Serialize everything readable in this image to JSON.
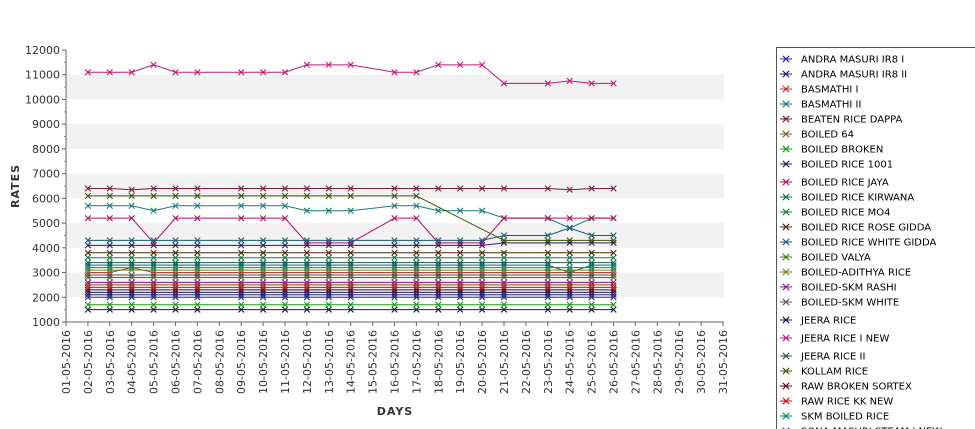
{
  "chart_data": {
    "type": "line",
    "title": "",
    "xlabel": "DAYS",
    "ylabel": "RATES",
    "ylim": [
      1000,
      12000
    ],
    "yticks": [
      1000,
      2000,
      3000,
      4000,
      5000,
      6000,
      7000,
      8000,
      9000,
      10000,
      11000,
      12000
    ],
    "x": [
      "01-05-2016",
      "02-05-2016",
      "03-05-2016",
      "04-05-2016",
      "05-05-2016",
      "06-05-2016",
      "07-05-2016",
      "08-05-2016",
      "09-05-2016",
      "10-05-2016",
      "11-05-2016",
      "12-05-2016",
      "13-05-2016",
      "14-05-2016",
      "15-05-2016",
      "16-05-2016",
      "17-05-2016",
      "18-05-2016",
      "19-05-2016",
      "20-05-2016",
      "21-05-2016",
      "22-05-2016",
      "23-05-2016",
      "24-05-2016",
      "25-05-2016",
      "26-05-2016",
      "27-05-2016",
      "28-05-2016",
      "29-05-2016",
      "30-05-2016",
      "31-05-2016"
    ],
    "grid": "alternating horizontal bands",
    "legend_position": "right",
    "series": [
      {
        "name": "ANDRA MASURI IR8 I",
        "color": "#2a2a9a",
        "values": [
          null,
          2000,
          2000,
          2000,
          2000,
          2000,
          2000,
          null,
          2000,
          2000,
          2000,
          2000,
          2000,
          2000,
          null,
          2000,
          2000,
          2000,
          2000,
          2000,
          2000,
          null,
          2000,
          2000,
          2000,
          2000,
          null,
          null,
          null,
          null,
          null
        ]
      },
      {
        "name": "ANDRA MASURI IR8 II",
        "color": "#1a1a6a",
        "values": [
          null,
          2200,
          2200,
          2200,
          2200,
          2200,
          2200,
          null,
          2200,
          2200,
          2200,
          2200,
          2200,
          2200,
          null,
          2200,
          2200,
          2200,
          2200,
          2200,
          2200,
          null,
          2200,
          2200,
          2200,
          2200,
          null,
          null,
          null,
          null,
          null
        ]
      },
      {
        "name": "BASMATHI I",
        "color": "#c0392b",
        "values": [
          null,
          3000,
          3000,
          3200,
          3000,
          3000,
          3000,
          null,
          3000,
          3000,
          3000,
          3000,
          3000,
          3000,
          null,
          3000,
          3000,
          3000,
          3000,
          3000,
          3000,
          null,
          3000,
          3000,
          3000,
          3000,
          null,
          null,
          null,
          null,
          null
        ]
      },
      {
        "name": "BASMATHI II",
        "color": "#1a7a7a",
        "values": [
          null,
          5700,
          5700,
          5700,
          5500,
          5700,
          5700,
          null,
          5700,
          5700,
          5700,
          5500,
          5500,
          5500,
          null,
          5700,
          5700,
          5500,
          5500,
          5500,
          5200,
          null,
          5200,
          4800,
          5200,
          5200,
          null,
          null,
          null,
          null,
          null
        ]
      },
      {
        "name": "BEATEN RICE DAPPA",
        "color": "#7a1a3a",
        "values": [
          null,
          6400,
          6400,
          6350,
          6400,
          6400,
          6400,
          null,
          6400,
          6400,
          6400,
          6400,
          6400,
          6400,
          null,
          6400,
          6400,
          6400,
          6400,
          6400,
          6400,
          null,
          6400,
          6350,
          6400,
          6400,
          null,
          null,
          null,
          null,
          null
        ]
      },
      {
        "name": "BOILED 64",
        "color": "#8a5a1a",
        "values": [
          null,
          2500,
          2500,
          2500,
          2500,
          2500,
          2500,
          null,
          2500,
          2500,
          2500,
          2500,
          2500,
          2500,
          null,
          2500,
          2500,
          2500,
          2500,
          2500,
          2500,
          null,
          2500,
          2500,
          2500,
          2500,
          null,
          null,
          null,
          null,
          null
        ]
      },
      {
        "name": "BOILED BROKEN",
        "color": "#1a9a1a",
        "values": [
          null,
          1700,
          1700,
          1700,
          1700,
          1700,
          1700,
          null,
          1700,
          1700,
          1700,
          1700,
          1700,
          1700,
          null,
          1700,
          1700,
          1700,
          1700,
          1700,
          1700,
          null,
          1700,
          1700,
          1700,
          1700,
          null,
          null,
          null,
          null,
          null
        ]
      },
      {
        "name": "BOILED RICE 1001",
        "color": "#3a1a5a",
        "values": [
          null,
          4100,
          4100,
          4100,
          4100,
          4100,
          4100,
          null,
          4100,
          4100,
          4100,
          4100,
          4100,
          4100,
          null,
          4100,
          4100,
          4100,
          4100,
          4100,
          4200,
          null,
          4200,
          4200,
          4200,
          4200,
          null,
          null,
          null,
          null,
          null
        ]
      },
      {
        "name": "BOILED RICE JAYA",
        "color": "#b0106a",
        "values": [
          null,
          5200,
          5200,
          5200,
          4200,
          5200,
          5200,
          null,
          5200,
          5200,
          5200,
          4200,
          4200,
          4200,
          null,
          5200,
          5200,
          4200,
          4200,
          4200,
          5200,
          null,
          5200,
          5200,
          5200,
          5200,
          null,
          null,
          null,
          null,
          null
        ]
      },
      {
        "name": "BOILED RICE KIRWANA",
        "color": "#0a6a5a",
        "values": [
          null,
          3300,
          3300,
          3300,
          3300,
          3300,
          3300,
          null,
          3300,
          3300,
          3300,
          3300,
          3300,
          3300,
          null,
          3300,
          3300,
          3300,
          3300,
          3300,
          3300,
          null,
          3300,
          3000,
          3300,
          3300,
          null,
          null,
          null,
          null,
          null
        ]
      },
      {
        "name": "BOILED RICE MO4",
        "color": "#1a7a3a",
        "values": [
          null,
          3600,
          3600,
          3600,
          3600,
          3600,
          3600,
          null,
          3600,
          3600,
          3600,
          3600,
          3600,
          3600,
          null,
          3600,
          3600,
          3600,
          3600,
          3600,
          3600,
          null,
          3600,
          3600,
          3600,
          3600,
          null,
          null,
          null,
          null,
          null
        ]
      },
      {
        "name": "BOILED RICE ROSE GIDDA",
        "color": "#4a2a0a",
        "values": [
          null,
          3800,
          3800,
          3800,
          3800,
          3800,
          3800,
          null,
          3800,
          3800,
          3800,
          3800,
          3800,
          3800,
          null,
          3800,
          3800,
          3800,
          3800,
          3800,
          3800,
          null,
          3800,
          3800,
          3800,
          3800,
          null,
          null,
          null,
          null,
          null
        ]
      },
      {
        "name": "BOILED RICE WHITE GIDDA",
        "color": "#1a5a7a",
        "values": [
          null,
          4300,
          4300,
          4300,
          4300,
          4300,
          4300,
          null,
          4300,
          4300,
          4300,
          4300,
          4300,
          4300,
          null,
          4300,
          4300,
          4300,
          4300,
          4300,
          4500,
          null,
          4500,
          4800,
          4500,
          4500,
          null,
          null,
          null,
          null,
          null
        ]
      },
      {
        "name": "BOILED VALYA",
        "color": "#4a7a1a",
        "values": [
          null,
          2800,
          2800,
          2800,
          2800,
          2800,
          2800,
          null,
          2800,
          2800,
          2800,
          2800,
          2800,
          2800,
          null,
          2800,
          2800,
          2800,
          2800,
          2800,
          2800,
          null,
          2800,
          2800,
          2800,
          2800,
          null,
          null,
          null,
          null,
          null
        ]
      },
      {
        "name": "BOILED-ADITHYA RICE",
        "color": "#6a8a1a",
        "values": [
          null,
          3100,
          3100,
          3100,
          3100,
          3100,
          3100,
          null,
          3100,
          3100,
          3100,
          3100,
          3100,
          3100,
          null,
          3100,
          3100,
          3100,
          3100,
          3100,
          3100,
          null,
          3100,
          3100,
          3100,
          3100,
          null,
          null,
          null,
          null,
          null
        ]
      },
      {
        "name": "BOILED-SKM RASHI",
        "color": "#8a1a8a",
        "values": [
          null,
          2600,
          2600,
          2600,
          2600,
          2600,
          2600,
          null,
          2600,
          2600,
          2600,
          2600,
          2600,
          2600,
          null,
          2600,
          2600,
          2600,
          2600,
          2600,
          2600,
          null,
          2600,
          2600,
          2600,
          2600,
          null,
          null,
          null,
          null,
          null
        ]
      },
      {
        "name": "BOILED-SKM WHITE",
        "color": "#5a5a5a",
        "values": [
          null,
          2900,
          2900,
          2900,
          2900,
          2900,
          2900,
          null,
          2900,
          2900,
          2900,
          2900,
          2900,
          2900,
          null,
          2900,
          2900,
          2900,
          2900,
          2900,
          2900,
          null,
          2900,
          2900,
          2900,
          2900,
          null,
          null,
          null,
          null,
          null
        ]
      },
      {
        "name": "JEERA RICE",
        "color": "#1a1a4a",
        "values": [
          null,
          1500,
          1500,
          1500,
          1500,
          1500,
          1500,
          null,
          1500,
          1500,
          1500,
          1500,
          1500,
          1500,
          null,
          1500,
          1500,
          1500,
          1500,
          1500,
          1500,
          null,
          1500,
          1500,
          1500,
          1500,
          null,
          null,
          null,
          null,
          null
        ]
      },
      {
        "name": "JEERA RICE I NEW",
        "color": "#c0187a",
        "values": [
          null,
          11100,
          11100,
          11100,
          11400,
          11100,
          11100,
          null,
          11100,
          11100,
          11100,
          11400,
          11400,
          11400,
          null,
          11100,
          11100,
          11400,
          11400,
          11400,
          10650,
          null,
          10650,
          10750,
          10650,
          10650,
          null,
          null,
          null,
          null,
          null
        ]
      },
      {
        "name": "JEERA RICE II",
        "color": "#1a5a4a",
        "values": [
          null,
          3400,
          3400,
          3400,
          3400,
          3400,
          3400,
          null,
          3400,
          3400,
          3400,
          3400,
          3400,
          3400,
          null,
          3400,
          3400,
          3400,
          3400,
          3400,
          3400,
          null,
          3400,
          3400,
          3400,
          3400,
          null,
          null,
          null,
          null,
          null
        ]
      },
      {
        "name": "KOLLAM RICE",
        "color": "#3a5a0a",
        "values": [
          null,
          6100,
          6100,
          6100,
          6100,
          6100,
          6100,
          null,
          6100,
          6100,
          6100,
          6100,
          6100,
          6100,
          null,
          6100,
          6100,
          null,
          null,
          null,
          4300,
          null,
          4300,
          4300,
          4300,
          4300,
          null,
          null,
          null,
          null,
          null
        ]
      },
      {
        "name": "RAW BROKEN SORTEX",
        "color": "#5a0a1a",
        "values": [
          null,
          2300,
          2300,
          2300,
          2300,
          2300,
          2300,
          null,
          2300,
          2300,
          2300,
          2300,
          2300,
          2300,
          null,
          2300,
          2300,
          2300,
          2300,
          2300,
          2300,
          null,
          2300,
          2300,
          2300,
          2300,
          null,
          null,
          null,
          null,
          null
        ]
      },
      {
        "name": "RAW RICE KK NEW",
        "color": "#c01a1a",
        "values": [
          null,
          2400,
          2400,
          2400,
          2400,
          2400,
          2400,
          null,
          2400,
          2400,
          2400,
          2400,
          2400,
          2400,
          null,
          2400,
          2400,
          2400,
          2400,
          2400,
          2400,
          null,
          2400,
          2400,
          2400,
          2400,
          null,
          null,
          null,
          null,
          null
        ]
      },
      {
        "name": "SKM BOILED RICE",
        "color": "#0a8a6a",
        "values": [
          null,
          3200,
          3200,
          3200,
          3200,
          3200,
          3200,
          null,
          3200,
          3200,
          3200,
          3200,
          3200,
          3200,
          null,
          3200,
          3200,
          3200,
          3200,
          3200,
          3200,
          null,
          3200,
          3200,
          3200,
          3200,
          null,
          null,
          null,
          null,
          null
        ]
      },
      {
        "name": "SONA MASURI STEAM I NEW",
        "color": "#2a2a6a",
        "values": [
          null,
          2100,
          2100,
          2100,
          2100,
          2100,
          2100,
          null,
          2100,
          2100,
          2100,
          2100,
          2100,
          2100,
          null,
          2100,
          2100,
          2100,
          2100,
          2100,
          2100,
          null,
          2100,
          2100,
          2100,
          2100,
          null,
          null,
          null,
          null,
          null
        ]
      }
    ]
  }
}
